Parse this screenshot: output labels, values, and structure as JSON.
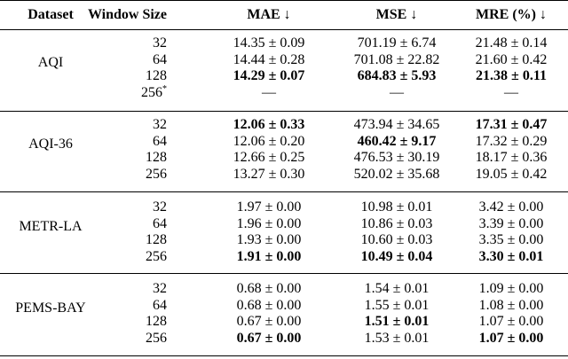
{
  "header": [
    "Dataset",
    "Window Size",
    "MAE ↓",
    "MSE ↓",
    "MRE (%) ↓"
  ],
  "groups": [
    {
      "dataset": "AQI",
      "rows": [
        {
          "cells": [
            "32",
            "14.35 ± 0.09",
            "701.19 ± 6.74",
            "21.48 ± 0.14"
          ],
          "bold": []
        },
        {
          "cells": [
            "64",
            "14.44 ± 0.28",
            "701.08 ± 22.82",
            "21.60 ± 0.42"
          ],
          "bold": []
        },
        {
          "cells": [
            "128",
            "14.29 ± 0.07",
            "684.83 ± 5.93",
            "21.38 ± 0.11"
          ],
          "bold": [
            1,
            2,
            3
          ]
        },
        {
          "cells": [
            "256",
            "—",
            "—",
            "—"
          ],
          "bold": [],
          "sup": "*"
        }
      ]
    },
    {
      "dataset": "AQI-36",
      "rows": [
        {
          "cells": [
            "32",
            "12.06 ± 0.33",
            "473.94 ± 34.65",
            "17.31 ± 0.47"
          ],
          "bold": [
            1,
            3
          ]
        },
        {
          "cells": [
            "64",
            "12.06 ± 0.20",
            "460.42 ± 9.17",
            "17.32 ± 0.29"
          ],
          "bold": [
            2
          ]
        },
        {
          "cells": [
            "128",
            "12.66 ± 0.25",
            "476.53 ± 30.19",
            "18.17 ± 0.36"
          ],
          "bold": []
        },
        {
          "cells": [
            "256",
            "13.27 ± 0.30",
            "520.02 ± 35.68",
            "19.05 ± 0.42"
          ],
          "bold": []
        }
      ]
    },
    {
      "dataset": "METR-LA",
      "rows": [
        {
          "cells": [
            "32",
            "1.97 ± 0.00",
            "10.98 ± 0.01",
            "3.42 ± 0.00"
          ],
          "bold": []
        },
        {
          "cells": [
            "64",
            "1.96 ± 0.00",
            "10.86 ± 0.03",
            "3.39 ± 0.00"
          ],
          "bold": []
        },
        {
          "cells": [
            "128",
            "1.93 ± 0.00",
            "10.60 ± 0.03",
            "3.35 ± 0.00"
          ],
          "bold": []
        },
        {
          "cells": [
            "256",
            "1.91 ± 0.00",
            "10.49 ± 0.04",
            "3.30 ± 0.01"
          ],
          "bold": [
            1,
            2,
            3
          ]
        }
      ]
    },
    {
      "dataset": "PEMS-BAY",
      "rows": [
        {
          "cells": [
            "32",
            "0.68 ± 0.00",
            "1.54 ± 0.01",
            "1.09 ± 0.00"
          ],
          "bold": []
        },
        {
          "cells": [
            "64",
            "0.68 ± 0.00",
            "1.55 ± 0.01",
            "1.08 ± 0.00"
          ],
          "bold": []
        },
        {
          "cells": [
            "128",
            "0.67 ± 0.00",
            "1.51 ± 0.01",
            "1.07 ± 0.00"
          ],
          "bold": [
            2
          ]
        },
        {
          "cells": [
            "256",
            "0.67 ± 0.00",
            "1.53 ± 0.01",
            "1.07 ± 0.00"
          ],
          "bold": [
            1,
            3
          ]
        }
      ]
    }
  ]
}
